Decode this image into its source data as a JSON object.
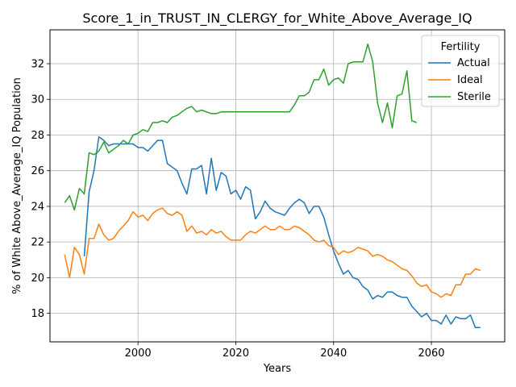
{
  "chart_data": {
    "type": "line",
    "title": "Score_1_in_TRUST_IN_CLERGY_for_White_Above_Average_IQ",
    "xlabel": "Years",
    "ylabel": "% of White Above_Average_IQ Population",
    "xlim": [
      1982,
      2075
    ],
    "ylim": [
      16.4,
      33.9
    ],
    "xticks": [
      2000,
      2020,
      2040,
      2060
    ],
    "yticks": [
      18,
      20,
      22,
      24,
      26,
      28,
      30,
      32
    ],
    "grid": true,
    "legend": {
      "title": "Fertility",
      "placement": "top-right"
    },
    "series": [
      {
        "name": "Actual",
        "color": "#1f77b4",
        "x": [
          1989,
          1990,
          1991,
          1992,
          1993,
          1994,
          1995,
          1996,
          1997,
          1998,
          1999,
          2000,
          2001,
          2002,
          2003,
          2004,
          2005,
          2006,
          2007,
          2008,
          2009,
          2010,
          2011,
          2012,
          2013,
          2014,
          2015,
          2016,
          2017,
          2018,
          2019,
          2020,
          2021,
          2022,
          2023,
          2024,
          2025,
          2026,
          2027,
          2028,
          2029,
          2030,
          2031,
          2032,
          2033,
          2034,
          2035,
          2036,
          2037,
          2038,
          2039,
          2040,
          2041,
          2042,
          2043,
          2044,
          2045,
          2046,
          2047,
          2048,
          2049,
          2050,
          2051,
          2052,
          2053,
          2054,
          2055,
          2056,
          2057,
          2058,
          2059,
          2060,
          2061,
          2062,
          2063,
          2064,
          2065,
          2066,
          2067,
          2068,
          2069,
          2070
        ],
        "values": [
          21.2,
          24.8,
          26.0,
          27.9,
          27.7,
          27.4,
          27.5,
          27.5,
          27.5,
          27.5,
          27.5,
          27.3,
          27.3,
          27.1,
          27.4,
          27.7,
          27.7,
          26.4,
          26.2,
          26.0,
          25.3,
          24.7,
          26.1,
          26.1,
          26.3,
          24.7,
          26.7,
          24.9,
          25.9,
          25.7,
          24.7,
          24.9,
          24.4,
          25.1,
          24.9,
          23.3,
          23.7,
          24.3,
          23.9,
          23.7,
          23.6,
          23.5,
          23.9,
          24.2,
          24.4,
          24.2,
          23.6,
          24.0,
          24.0,
          23.4,
          22.4,
          21.5,
          20.8,
          20.2,
          20.4,
          20.0,
          19.9,
          19.5,
          19.3,
          18.8,
          19.0,
          18.9,
          19.2,
          19.2,
          19.0,
          18.9,
          18.9,
          18.4,
          18.1,
          17.8,
          18.0,
          17.6,
          17.6,
          17.4,
          17.9,
          17.4,
          17.8,
          17.7,
          17.7,
          17.9,
          17.2,
          17.2
        ]
      },
      {
        "name": "Ideal",
        "color": "#ff7f0e",
        "x": [
          1985,
          1986,
          1987,
          1988,
          1989,
          1990,
          1991,
          1992,
          1993,
          1994,
          1995,
          1996,
          1997,
          1998,
          1999,
          2000,
          2001,
          2002,
          2003,
          2004,
          2005,
          2006,
          2007,
          2008,
          2009,
          2010,
          2011,
          2012,
          2013,
          2014,
          2015,
          2016,
          2017,
          2018,
          2019,
          2020,
          2021,
          2022,
          2023,
          2024,
          2025,
          2026,
          2027,
          2028,
          2029,
          2030,
          2031,
          2032,
          2033,
          2034,
          2035,
          2036,
          2037,
          2038,
          2039,
          2040,
          2041,
          2042,
          2043,
          2044,
          2045,
          2046,
          2047,
          2048,
          2049,
          2050,
          2051,
          2052,
          2053,
          2054,
          2055,
          2056,
          2057,
          2058,
          2059,
          2060,
          2061,
          2062,
          2063,
          2064,
          2065,
          2066,
          2067,
          2068,
          2069,
          2070
        ],
        "values": [
          21.3,
          20.0,
          21.7,
          21.3,
          20.2,
          22.2,
          22.2,
          23.0,
          22.4,
          22.1,
          22.2,
          22.6,
          22.9,
          23.2,
          23.7,
          23.4,
          23.5,
          23.2,
          23.6,
          23.8,
          23.9,
          23.6,
          23.5,
          23.7,
          23.5,
          22.6,
          22.9,
          22.5,
          22.6,
          22.4,
          22.7,
          22.5,
          22.6,
          22.3,
          22.1,
          22.1,
          22.1,
          22.4,
          22.6,
          22.5,
          22.7,
          22.9,
          22.7,
          22.7,
          22.9,
          22.7,
          22.7,
          22.9,
          22.8,
          22.6,
          22.4,
          22.1,
          22.0,
          22.1,
          21.8,
          21.7,
          21.3,
          21.5,
          21.4,
          21.5,
          21.7,
          21.6,
          21.5,
          21.2,
          21.3,
          21.2,
          21.0,
          20.9,
          20.7,
          20.5,
          20.4,
          20.1,
          19.7,
          19.5,
          19.6,
          19.2,
          19.1,
          18.9,
          19.1,
          19.0,
          19.6,
          19.6,
          20.2,
          20.2,
          20.5,
          20.4
        ]
      },
      {
        "name": "Sterile",
        "color": "#2ca02c",
        "x": [
          1985,
          1986,
          1987,
          1988,
          1989,
          1990,
          1991,
          1992,
          1993,
          1994,
          1995,
          1996,
          1997,
          1998,
          1999,
          2000,
          2001,
          2002,
          2003,
          2004,
          2005,
          2006,
          2007,
          2008,
          2009,
          2010,
          2011,
          2012,
          2013,
          2014,
          2015,
          2016,
          2017,
          2018,
          2019,
          2020,
          2021,
          2022,
          2023,
          2024,
          2025,
          2026,
          2027,
          2028,
          2029,
          2030,
          2031,
          2032,
          2033,
          2034,
          2035,
          2036,
          2037,
          2038,
          2039,
          2040,
          2041,
          2042,
          2043,
          2044,
          2045,
          2046,
          2047,
          2048,
          2049,
          2050,
          2051,
          2052,
          2053,
          2054,
          2055,
          2056,
          2057
        ],
        "values": [
          24.2,
          24.6,
          23.8,
          25.0,
          24.7,
          27.0,
          26.9,
          27.1,
          27.6,
          27.0,
          27.2,
          27.4,
          27.7,
          27.5,
          28.0,
          28.1,
          28.3,
          28.2,
          28.7,
          28.7,
          28.8,
          28.7,
          29.0,
          29.1,
          29.3,
          29.5,
          29.6,
          29.3,
          29.4,
          29.3,
          29.2,
          29.2,
          29.3,
          29.3,
          29.3,
          29.3,
          29.3,
          29.3,
          29.3,
          29.3,
          29.3,
          29.3,
          29.3,
          29.3,
          29.3,
          29.3,
          29.3,
          29.7,
          30.2,
          30.2,
          30.4,
          31.1,
          31.1,
          31.7,
          30.8,
          31.1,
          31.2,
          30.9,
          32.0,
          32.1,
          32.1,
          32.1,
          33.1,
          32.1,
          29.8,
          28.7,
          29.8,
          28.4,
          30.2,
          30.3,
          31.6,
          28.8,
          28.7
        ]
      }
    ]
  }
}
